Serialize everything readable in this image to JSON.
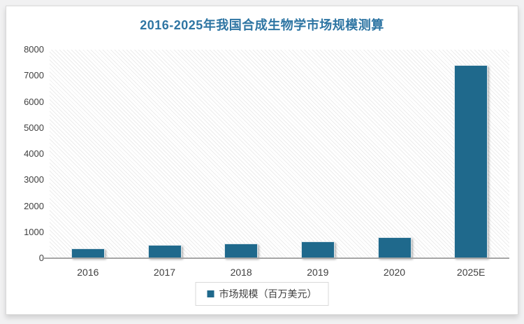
{
  "window": {
    "background_color": "#f1f1f2",
    "card_background": "#ffffff"
  },
  "chart_data": {
    "type": "bar",
    "title": "2016-2025年我国合成生物学市场规模测算",
    "title_color": "#2e75a3",
    "categories": [
      "2016",
      "2017",
      "2018",
      "2019",
      "2020",
      "2025E"
    ],
    "series": [
      {
        "name": "市场规模（百万美元）",
        "values": [
          380,
          500,
          560,
          650,
          810,
          7400
        ]
      }
    ],
    "xlabel": "",
    "ylabel": "",
    "ylim": [
      0,
      8000
    ],
    "ytick_step": 1000,
    "yticks": [
      0,
      1000,
      2000,
      3000,
      4000,
      5000,
      6000,
      7000,
      8000
    ],
    "grid": false,
    "plot_background": "light-gray-diagonal-hatch",
    "bar_color": "#1f698c",
    "bar_outline_color": "#dde7ec",
    "axis_line_color": "#a6a6a6",
    "legend_position": "bottom-center"
  },
  "legend": {
    "label": "市场规模（百万美元）"
  }
}
